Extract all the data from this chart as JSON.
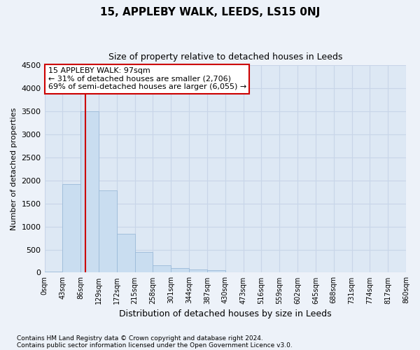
{
  "title": "15, APPLEBY WALK, LEEDS, LS15 0NJ",
  "subtitle": "Size of property relative to detached houses in Leeds",
  "xlabel": "Distribution of detached houses by size in Leeds",
  "ylabel": "Number of detached properties",
  "bar_color": "#c9ddf0",
  "bar_edge_color": "#9bbad8",
  "bar_values": [
    25,
    1920,
    3500,
    1780,
    850,
    450,
    160,
    95,
    65,
    50,
    0,
    0,
    0,
    0,
    0,
    0,
    0,
    0,
    0,
    0
  ],
  "categories": [
    "0sqm",
    "43sqm",
    "86sqm",
    "129sqm",
    "172sqm",
    "215sqm",
    "258sqm",
    "301sqm",
    "344sqm",
    "387sqm",
    "430sqm",
    "473sqm",
    "516sqm",
    "559sqm",
    "602sqm",
    "645sqm",
    "688sqm",
    "731sqm",
    "774sqm",
    "817sqm",
    "860sqm"
  ],
  "ylim": [
    0,
    4500
  ],
  "yticks": [
    0,
    500,
    1000,
    1500,
    2000,
    2500,
    3000,
    3500,
    4000,
    4500
  ],
  "annotation_line1": "15 APPLEBY WALK: 97sqm",
  "annotation_line2": "← 31% of detached houses are smaller (2,706)",
  "annotation_line3": "69% of semi-detached houses are larger (6,055) →",
  "annotation_box_color": "#ffffff",
  "annotation_box_edge": "#cc0000",
  "vline_color": "#cc0000",
  "footer_line1": "Contains HM Land Registry data © Crown copyright and database right 2024.",
  "footer_line2": "Contains public sector information licensed under the Open Government Licence v3.0.",
  "bg_color": "#edf2f9",
  "plot_bg_color": "#dde8f4",
  "grid_color": "#c8d5e8"
}
